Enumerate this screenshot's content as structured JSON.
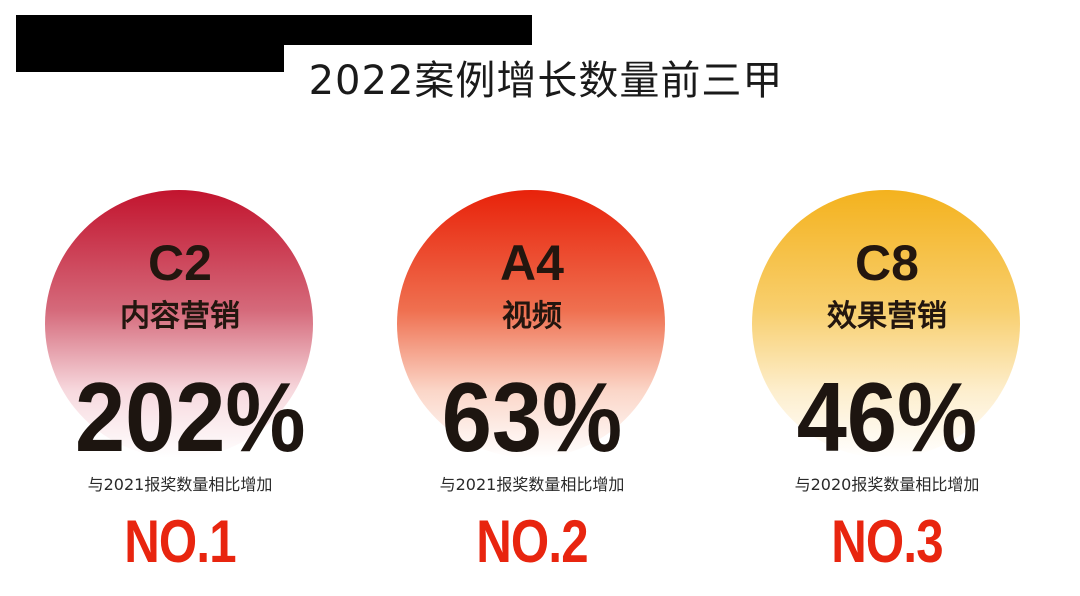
{
  "title": "2022案例增长数量前三甲",
  "cards": [
    {
      "code": "C2",
      "category": "内容营销",
      "percent": "202%",
      "description": "与2021报奖数量相比增加",
      "rank": "NO.1",
      "color": "#c2142e"
    },
    {
      "code": "A4",
      "category": "视频",
      "percent": "63%",
      "description": "与2021报奖数量相比增加",
      "rank": "NO.2",
      "color": "#e8220a"
    },
    {
      "code": "C8",
      "category": "效果营销",
      "percent": "46%",
      "description": "与2020报奖数量相比增加",
      "rank": "NO.3",
      "color": "#f4b21e"
    }
  ]
}
